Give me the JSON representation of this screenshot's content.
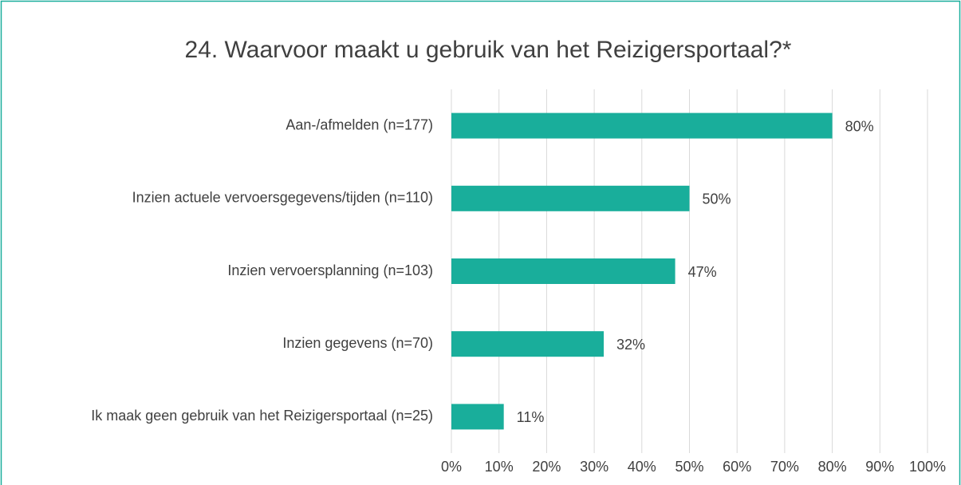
{
  "chart_data": {
    "type": "barh",
    "title": "24. Waarvoor maakt u gebruik van het Reizigersportaal?*",
    "categories": [
      "Aan-/afmelden (n=177)",
      "Inzien actuele vervoersgegevens/tijden (n=110)",
      "Inzien vervoersplanning (n=103)",
      "Inzien gegevens (n=70)",
      "Ik maak geen gebruik van het Reizigersportaal (n=25)"
    ],
    "values": [
      80,
      50,
      47,
      32,
      11
    ],
    "value_labels": [
      "80%",
      "50%",
      "47%",
      "32%",
      "11%"
    ],
    "color": "#19ae9b",
    "xlim": [
      0,
      100
    ],
    "xticks": [
      {
        "value": 0,
        "label": "0%"
      },
      {
        "value": 10,
        "label": "10%"
      },
      {
        "value": 20,
        "label": "20%"
      },
      {
        "value": 30,
        "label": "30%"
      },
      {
        "value": 40,
        "label": "40%"
      },
      {
        "value": 50,
        "label": "50%"
      },
      {
        "value": 60,
        "label": "60%"
      },
      {
        "value": 70,
        "label": "70%"
      },
      {
        "value": 80,
        "label": "80%"
      },
      {
        "value": 90,
        "label": "90%"
      },
      {
        "value": 100,
        "label": "100%"
      }
    ],
    "grid": true
  }
}
